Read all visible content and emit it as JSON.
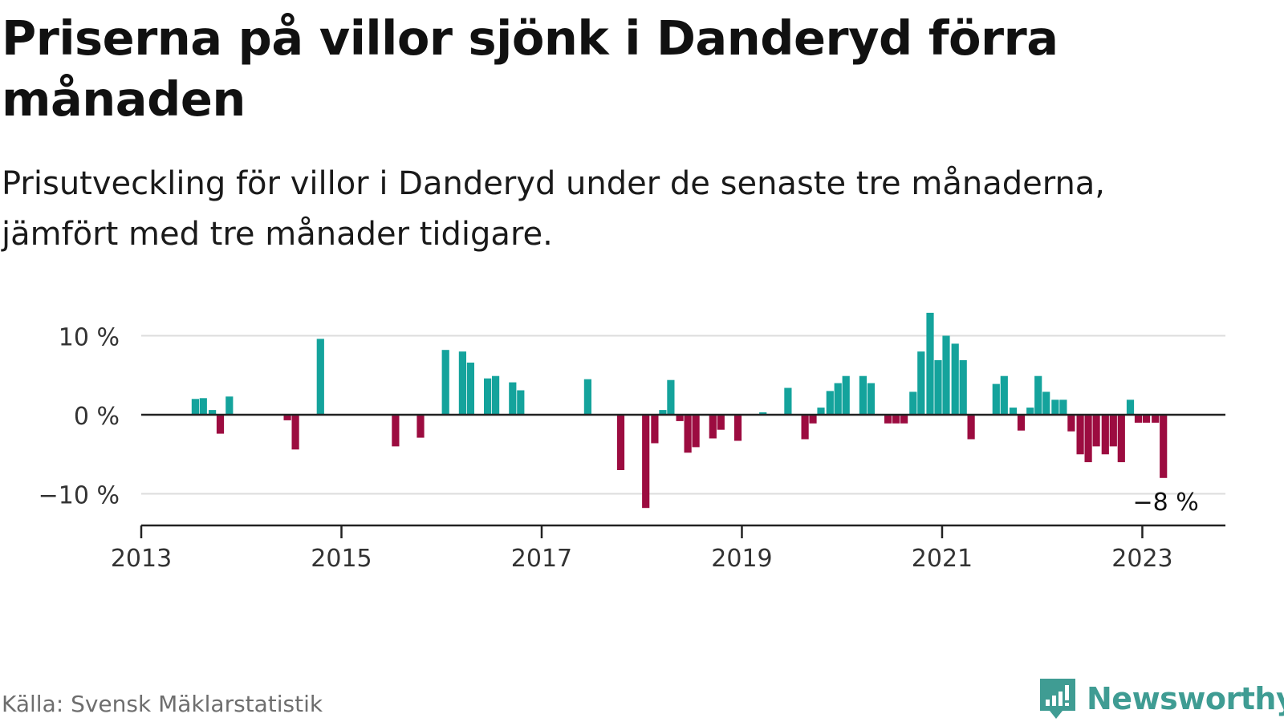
{
  "title": "Priserna på villor sjönk i Danderyd förra månaden",
  "subtitle": "Prisutveckling för villor i Danderyd under de senaste tre månaderna, jämfört med tre månader tidigare.",
  "source": "Källa: Svensk Mäklarstatistik",
  "brand": "Newsworthy",
  "colors": {
    "positive": "#14a39c",
    "negative": "#9c0c40",
    "grid": "#dddddd",
    "axis": "#222222",
    "brand": "#3f9c93"
  },
  "chart_data": {
    "type": "bar",
    "title": "Priserna på villor sjönk i Danderyd förra månaden",
    "xlabel": "",
    "ylabel": "",
    "ylim": [
      -13.5,
      13.5
    ],
    "y_ticks": [
      10,
      0,
      -10
    ],
    "y_tick_labels": [
      "10 %",
      "0 %",
      "−10 %"
    ],
    "x_range": [
      2013.0,
      2023.83
    ],
    "x_ticks": [
      2013,
      2015,
      2017,
      2019,
      2021,
      2023
    ],
    "x_tick_labels": [
      "2013",
      "2015",
      "2017",
      "2019",
      "2021",
      "2023"
    ],
    "grid": true,
    "annotation": {
      "text": "−8 %",
      "x": 2023.21,
      "y": -8
    },
    "x": [
      2013.54,
      2013.62,
      2013.71,
      2013.79,
      2013.88,
      2014.46,
      2014.54,
      2014.79,
      2015.54,
      2015.79,
      2016.04,
      2016.21,
      2016.29,
      2016.46,
      2016.54,
      2016.71,
      2016.79,
      2017.46,
      2017.79,
      2018.04,
      2018.13,
      2018.21,
      2018.29,
      2018.38,
      2018.46,
      2018.54,
      2018.71,
      2018.79,
      2018.96,
      2019.21,
      2019.46,
      2019.63,
      2019.71,
      2019.79,
      2019.88,
      2019.96,
      2020.04,
      2020.21,
      2020.29,
      2020.46,
      2020.54,
      2020.62,
      2020.71,
      2020.79,
      2020.88,
      2020.96,
      2021.04,
      2021.13,
      2021.21,
      2021.29,
      2021.54,
      2021.62,
      2021.71,
      2021.79,
      2021.88,
      2021.96,
      2022.04,
      2022.13,
      2022.21,
      2022.29,
      2022.38,
      2022.46,
      2022.54,
      2022.63,
      2022.71,
      2022.79,
      2022.88,
      2022.96,
      2023.04,
      2023.13,
      2023.21
    ],
    "values": [
      2.0,
      2.1,
      0.6,
      -2.4,
      2.3,
      -0.7,
      -4.4,
      9.6,
      -4.0,
      -2.9,
      8.2,
      8.0,
      6.6,
      4.6,
      4.9,
      4.1,
      3.1,
      4.5,
      -7.0,
      -11.8,
      -3.6,
      0.6,
      4.4,
      -0.8,
      -4.8,
      -4.1,
      -3.0,
      -1.9,
      -3.3,
      0.3,
      3.4,
      -3.1,
      -1.1,
      0.9,
      3.0,
      4.0,
      4.9,
      4.9,
      4.0,
      -1.1,
      -1.1,
      -1.1,
      2.9,
      8.0,
      12.9,
      6.9,
      10.0,
      9.0,
      6.9,
      -3.1,
      3.9,
      4.9,
      0.9,
      -2.0,
      0.9,
      4.9,
      2.9,
      1.9,
      1.9,
      -2.1,
      -5.0,
      -6.0,
      -4.0,
      -5.0,
      -4.0,
      -6.0,
      1.9,
      -1.0,
      -1.0,
      -1.0,
      -8.0
    ]
  }
}
